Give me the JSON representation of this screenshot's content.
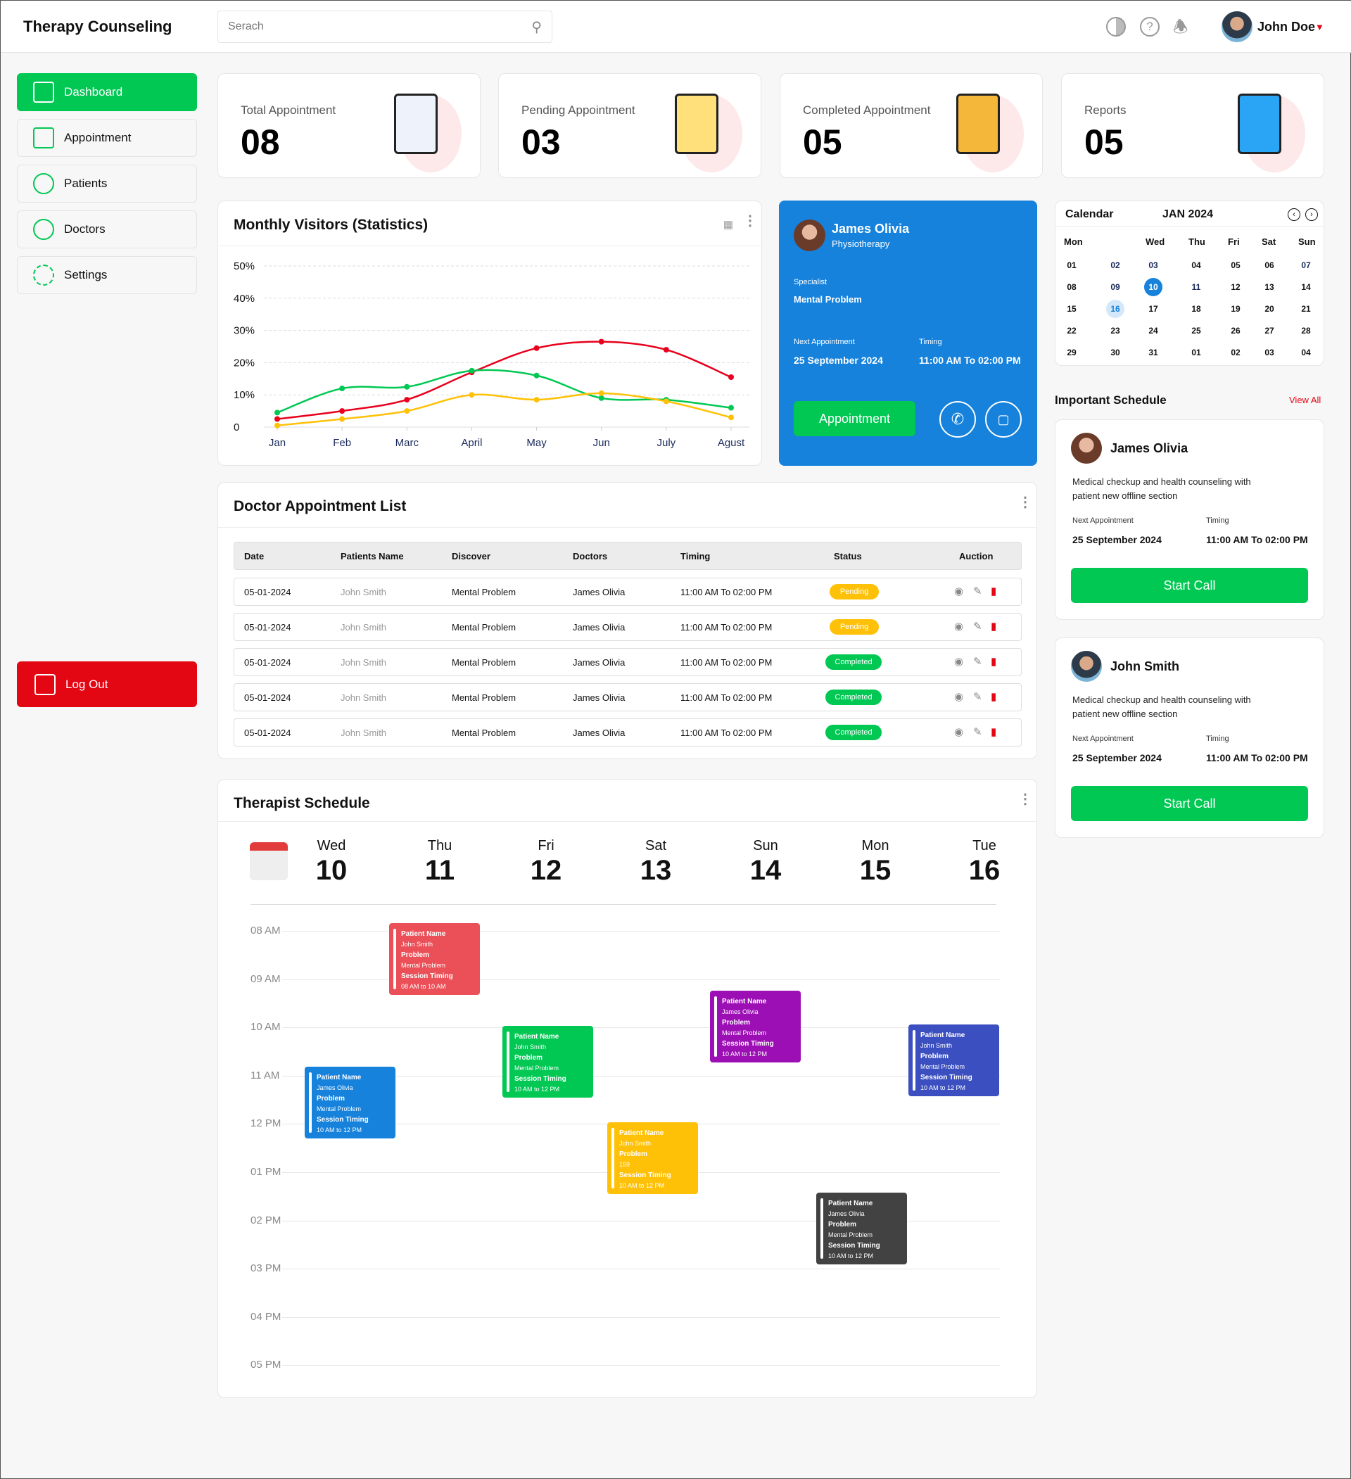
{
  "header": {
    "brand": "Therapy Counseling",
    "search_placeholder": "Serach",
    "user_name": "John Doe"
  },
  "sidebar": {
    "items": [
      {
        "label": "Dashboard",
        "icon": "dashboard-icon"
      },
      {
        "label": "Appointment",
        "icon": "calendar-icon"
      },
      {
        "label": "Patients",
        "icon": "patients-icon"
      },
      {
        "label": "Doctors",
        "icon": "doctor-icon"
      },
      {
        "label": "Settings",
        "icon": "gear-icon"
      }
    ],
    "logout": "Log Out"
  },
  "stats": [
    {
      "label": "Total Appointment",
      "value": "08"
    },
    {
      "label": "Pending Appointment",
      "value": "03"
    },
    {
      "label": "Completed Appointment",
      "value": "05"
    },
    {
      "label": "Reports",
      "value": "05"
    }
  ],
  "chart_data": {
    "type": "line",
    "title": "Monthly Visitors (Statistics)",
    "categories": [
      "Jan",
      "Feb",
      "Marc",
      "April",
      "May",
      "Jun",
      "July",
      "Agust"
    ],
    "y_ticks": [
      "0",
      "10%",
      "20%",
      "30%",
      "40%",
      "50%"
    ],
    "ylim": [
      0,
      50
    ],
    "grid": true,
    "series": [
      {
        "color": "#e8001c",
        "values": [
          2.5,
          5,
          8.5,
          17,
          24.5,
          26.5,
          24,
          15.5
        ]
      },
      {
        "color": "#00c853",
        "values": [
          4.5,
          12,
          12.5,
          17.5,
          16,
          9,
          8.5,
          6
        ]
      },
      {
        "color": "#ffc107",
        "values": [
          0.5,
          2.5,
          5,
          10,
          8.5,
          10.5,
          8,
          3
        ]
      }
    ]
  },
  "profile": {
    "name": "James Olivia",
    "role": "Physiotherapy",
    "specialist_label": "Specialist",
    "specialist": "Mental Problem",
    "next_label": "Next Appointment",
    "next": "25 September 2024",
    "timing_label": "Timing",
    "timing": "11:00 AM To 02:00 PM",
    "button": "Appointment"
  },
  "calendar": {
    "title": "Calendar",
    "month": "JAN 2024",
    "weekdays": [
      "Mon",
      "",
      "Wed",
      "Thu",
      "Fri",
      "Sat",
      "Sun"
    ],
    "weeks": [
      [
        "01",
        "02",
        "03",
        "04",
        "05",
        "06",
        "07"
      ],
      [
        "08",
        "09",
        "10",
        "11",
        "12",
        "13",
        "14"
      ],
      [
        "15",
        "16",
        "17",
        "18",
        "19",
        "20",
        "21"
      ],
      [
        "22",
        "23",
        "24",
        "25",
        "26",
        "27",
        "28"
      ],
      [
        "29",
        "30",
        "31",
        "01",
        "02",
        "03",
        "04"
      ]
    ],
    "selected": "10",
    "highlighted": "16"
  },
  "important": {
    "title": "Important Schedule",
    "view_all": "View All",
    "items": [
      {
        "name": "James Olivia",
        "desc": "Medical checkup and health counseling with patient new offline section",
        "next_label": "Next Appointment",
        "next": "25 September 2024",
        "timing_label": "Timing",
        "timing": "11:00 AM To 02:00 PM",
        "button": "Start Call"
      },
      {
        "name": "John Smith",
        "desc": "Medical checkup and health counseling with patient new offline section",
        "next_label": "Next Appointment",
        "next": "25 September 2024",
        "timing_label": "Timing",
        "timing": "11:00 AM To 02:00 PM",
        "button": "Start Call"
      }
    ]
  },
  "table": {
    "title": "Doctor Appointment List",
    "columns": [
      "Date",
      "Patients Name",
      "Discover",
      "Doctors",
      "Timing",
      "Status",
      "Auction"
    ],
    "rows": [
      {
        "date": "05-01-2024",
        "patient": "John Smith",
        "discover": "Mental Problem",
        "doctor": "James Olivia",
        "timing": "11:00 AM To 02:00 PM",
        "status": "Pending"
      },
      {
        "date": "05-01-2024",
        "patient": "John Smith",
        "discover": "Mental Problem",
        "doctor": "James Olivia",
        "timing": "11:00 AM To 02:00 PM",
        "status": "Pending"
      },
      {
        "date": "05-01-2024",
        "patient": "John Smith",
        "discover": "Mental Problem",
        "doctor": "James Olivia",
        "timing": "11:00 AM To 02:00 PM",
        "status": "Completed"
      },
      {
        "date": "05-01-2024",
        "patient": "John Smith",
        "discover": "Mental Problem",
        "doctor": "James Olivia",
        "timing": "11:00 AM To 02:00 PM",
        "status": "Completed"
      },
      {
        "date": "05-01-2024",
        "patient": "John Smith",
        "discover": "Mental Problem",
        "doctor": "James Olivia",
        "timing": "11:00 AM To 02:00 PM",
        "status": "Completed"
      }
    ],
    "status_colors": {
      "Pending": "#ffc107",
      "Completed": "#00c853"
    }
  },
  "schedule": {
    "title": "Therapist Schedule",
    "days": [
      {
        "name": "Wed",
        "num": "10"
      },
      {
        "name": "Thu",
        "num": "11"
      },
      {
        "name": "Fri",
        "num": "12"
      },
      {
        "name": "Sat",
        "num": "13"
      },
      {
        "name": "Sun",
        "num": "14"
      },
      {
        "name": "Mon",
        "num": "15"
      },
      {
        "name": "Tue",
        "num": "16"
      }
    ],
    "times": [
      "08 AM",
      "09 AM",
      "10 AM",
      "11 AM",
      "12 PM",
      "01 PM",
      "02 PM",
      "03 PM",
      "04 PM",
      "05 PM"
    ],
    "events": [
      {
        "color": "#eb5058",
        "patient": "John Smith",
        "problem": "Mental Problem",
        "timing": "08 AM to 10 AM"
      },
      {
        "color": "#1682dc",
        "patient": "James Olivia",
        "problem": "Mental Problem",
        "timing": "10 AM to 12 PM"
      },
      {
        "color": "#00c853",
        "patient": "John Smith",
        "problem": "Mental Problem",
        "timing": "10 AM to 12 PM"
      },
      {
        "color": "#ffc107",
        "patient": "John Smith",
        "problem": "159",
        "timing": "10 AM to 12 PM"
      },
      {
        "color": "#9c0fb5",
        "patient": "James Olivia",
        "problem": "Mental Problem",
        "timing": "10 AM to 12 PM"
      },
      {
        "color": "#3b4fc0",
        "patient": "John Smith",
        "problem": "Mental Problem",
        "timing": "10 AM to 12 PM"
      },
      {
        "color": "#424242",
        "patient": "James Olivia",
        "problem": "Mental Problem",
        "timing": "10 AM to 12 PM"
      }
    ],
    "labels": {
      "patient": "Patient Name",
      "problem": "Problem",
      "timing": "Session Timing"
    }
  }
}
